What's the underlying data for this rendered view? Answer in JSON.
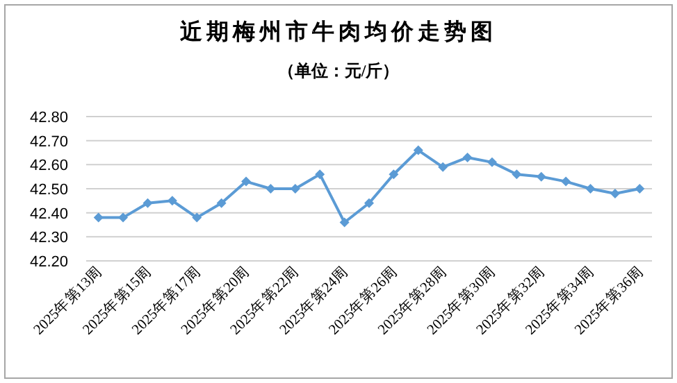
{
  "chart_data": {
    "type": "line",
    "title": "近期梅州市牛肉均价走势图",
    "subtitle": "（单位：元/斤）",
    "categories": [
      "2025年第13周",
      null,
      "2025年第15周",
      null,
      "2025年第17周",
      null,
      "2025年第20周",
      null,
      "2025年第22周",
      null,
      "2025年第24周",
      null,
      "2025年第26周",
      null,
      "2025年第28周",
      null,
      "2025年第30周",
      null,
      "2025年第32周",
      null,
      "2025年第34周",
      null,
      "2025年第36周"
    ],
    "values": [
      42.38,
      42.38,
      42.44,
      42.45,
      42.38,
      42.44,
      42.53,
      42.5,
      42.5,
      42.56,
      42.36,
      42.44,
      42.56,
      42.66,
      42.59,
      42.63,
      42.61,
      42.56,
      42.55,
      42.53,
      42.5,
      42.48,
      42.5
    ],
    "color": "#5b9bd5",
    "ylim": [
      42.2,
      42.8
    ],
    "yticks": [
      {
        "value": 42.2,
        "label": "42.20"
      },
      {
        "value": 42.3,
        "label": "42.30"
      },
      {
        "value": 42.4,
        "label": "42.40"
      },
      {
        "value": 42.5,
        "label": "42.50"
      },
      {
        "value": 42.6,
        "label": "42.60"
      },
      {
        "value": 42.7,
        "label": "42.70"
      },
      {
        "value": 42.8,
        "label": "42.80"
      }
    ],
    "grid": "y",
    "marker": "diamond",
    "line_style": "solid"
  }
}
